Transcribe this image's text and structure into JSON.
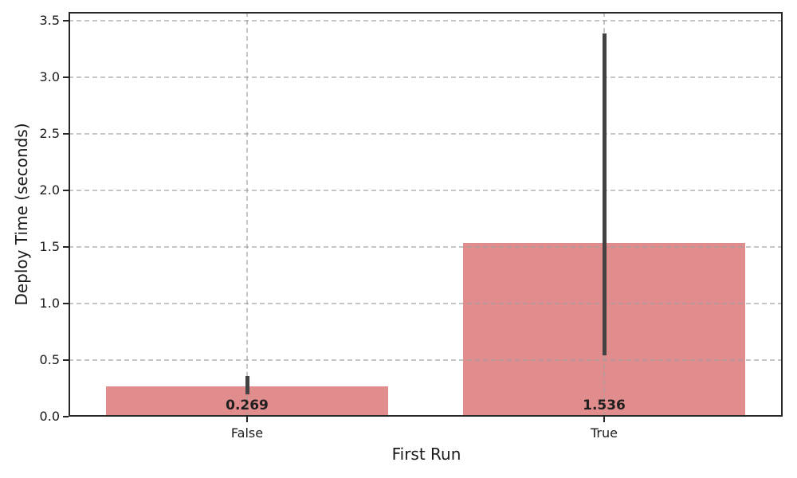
{
  "chart_data": {
    "type": "bar",
    "title": "",
    "xlabel": "First Run",
    "ylabel": "Deploy Time (seconds)",
    "categories": [
      "False",
      "True"
    ],
    "values": [
      0.269,
      1.536
    ],
    "bar_labels": [
      "0.269",
      "1.536"
    ],
    "error_bars": [
      {
        "low": 0.2,
        "high": 0.36
      },
      {
        "low": 0.54,
        "high": 3.39
      }
    ],
    "ylim": [
      0,
      3.577
    ],
    "yticks": [
      0.0,
      0.5,
      1.0,
      1.5,
      2.0,
      2.5,
      3.0,
      3.5
    ],
    "grid": {
      "style": "dashed",
      "horizontal": true,
      "vertical": true,
      "drawn_over_bars": true
    },
    "legend": null,
    "colors": {
      "bar_fill": "#E18C8D",
      "error_bar": "#424242",
      "grid_line": "#C6C6C6",
      "axis_spine": "#262626",
      "text": "#1A1A1A",
      "background": "#FFFFFF"
    }
  }
}
